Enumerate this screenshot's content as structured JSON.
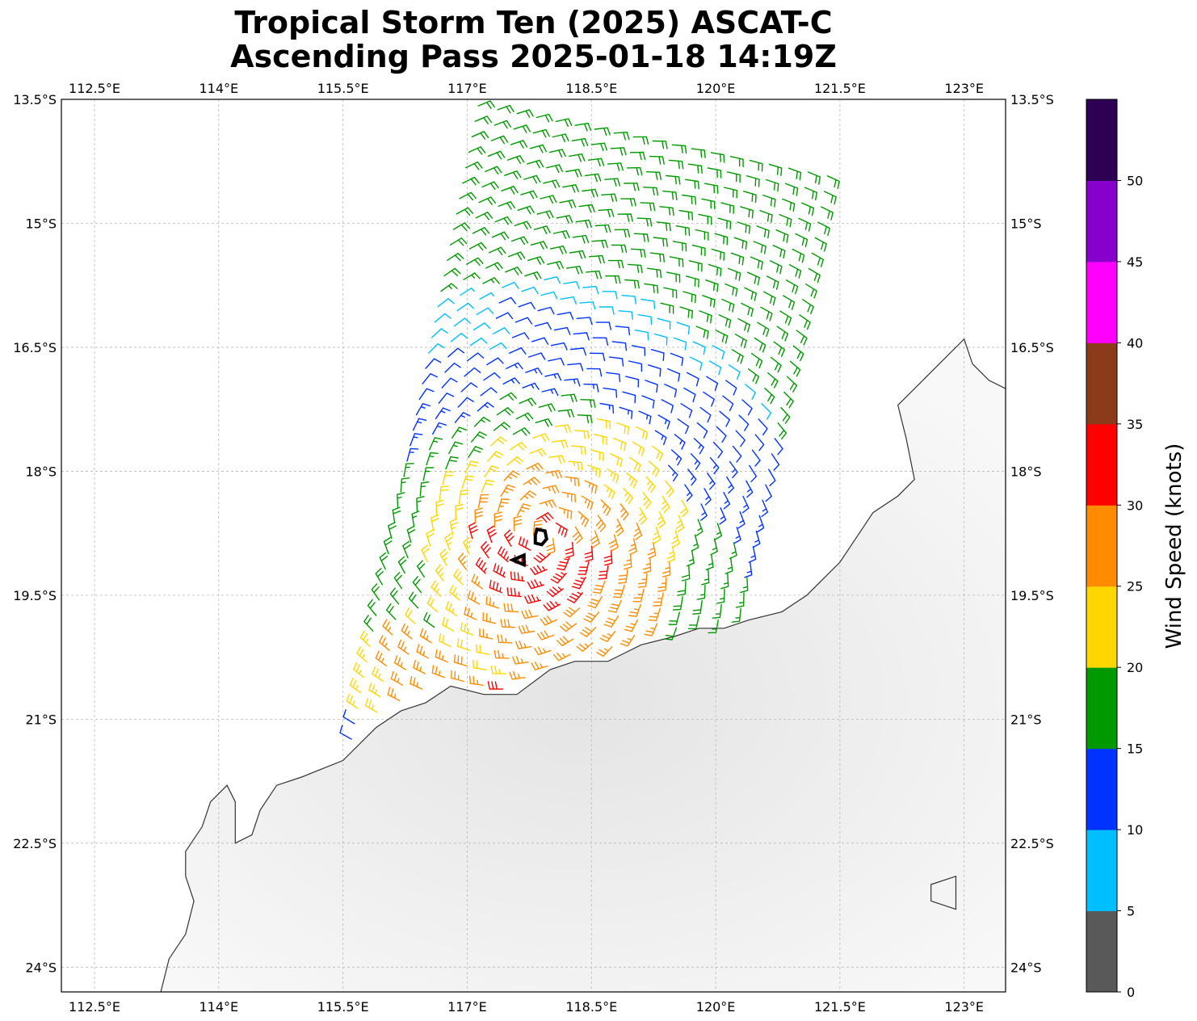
{
  "title": {
    "line1": "Tropical Storm Ten (2025) ASCAT-C",
    "line2": "Ascending Pass 2025-01-18 14:19Z"
  },
  "map": {
    "lon_range": [
      112.1,
      123.5
    ],
    "lat_range": [
      -24.3,
      -13.5
    ],
    "lon_ticks": [
      {
        "value": 112.5,
        "label": "112.5°E"
      },
      {
        "value": 114.0,
        "label": "114°E"
      },
      {
        "value": 115.5,
        "label": "115.5°E"
      },
      {
        "value": 117.0,
        "label": "117°E"
      },
      {
        "value": 118.5,
        "label": "118.5°E"
      },
      {
        "value": 120.0,
        "label": "120°E"
      },
      {
        "value": 121.5,
        "label": "121.5°E"
      },
      {
        "value": 123.0,
        "label": "123°E"
      }
    ],
    "lat_ticks": [
      {
        "value": -13.5,
        "label": "13.5°S"
      },
      {
        "value": -15.0,
        "label": "15°S"
      },
      {
        "value": -16.5,
        "label": "16.5°S"
      },
      {
        "value": -18.0,
        "label": "18°S"
      },
      {
        "value": -19.5,
        "label": "19.5°S"
      },
      {
        "value": -21.0,
        "label": "21°S"
      },
      {
        "value": -22.5,
        "label": "22.5°S"
      },
      {
        "value": -24.0,
        "label": "24°S"
      }
    ],
    "gridlines": true,
    "storm_center": {
      "lon": 117.9,
      "lat": -18.8
    },
    "coast": [
      [
        113.3,
        -24.3
      ],
      [
        113.4,
        -23.9
      ],
      [
        113.6,
        -23.6
      ],
      [
        113.7,
        -23.2
      ],
      [
        113.6,
        -22.9
      ],
      [
        113.6,
        -22.6
      ],
      [
        113.8,
        -22.3
      ],
      [
        113.9,
        -22.0
      ],
      [
        114.1,
        -21.8
      ],
      [
        114.2,
        -22.0
      ],
      [
        114.2,
        -22.3
      ],
      [
        114.2,
        -22.5
      ],
      [
        114.4,
        -22.4
      ],
      [
        114.5,
        -22.1
      ],
      [
        114.7,
        -21.8
      ],
      [
        115.0,
        -21.7
      ],
      [
        115.5,
        -21.5
      ],
      [
        115.9,
        -21.1
      ],
      [
        116.2,
        -20.9
      ],
      [
        116.5,
        -20.8
      ],
      [
        116.8,
        -20.6
      ],
      [
        117.2,
        -20.7
      ],
      [
        117.6,
        -20.7
      ],
      [
        118.0,
        -20.4
      ],
      [
        118.3,
        -20.3
      ],
      [
        118.7,
        -20.3
      ],
      [
        119.1,
        -20.1
      ],
      [
        119.5,
        -20.0
      ],
      [
        119.8,
        -19.9
      ],
      [
        120.1,
        -19.9
      ],
      [
        120.4,
        -19.8
      ],
      [
        120.8,
        -19.7
      ],
      [
        121.1,
        -19.5
      ],
      [
        121.5,
        -19.1
      ],
      [
        121.7,
        -18.8
      ],
      [
        121.9,
        -18.5
      ],
      [
        122.2,
        -18.3
      ],
      [
        122.4,
        -18.1
      ],
      [
        122.3,
        -17.6
      ],
      [
        122.2,
        -17.2
      ],
      [
        122.5,
        -16.9
      ],
      [
        122.8,
        -16.6
      ],
      [
        123.0,
        -16.4
      ],
      [
        123.1,
        -16.7
      ],
      [
        123.3,
        -16.9
      ],
      [
        123.5,
        -17.0
      ]
    ],
    "island": [
      [
        122.6,
        -23.0
      ],
      [
        122.9,
        -22.9
      ],
      [
        122.9,
        -23.3
      ],
      [
        122.6,
        -23.2
      ],
      [
        122.6,
        -23.0
      ]
    ]
  },
  "colorbar": {
    "label": "Wind Speed (knots)",
    "levels": [
      0,
      5,
      10,
      15,
      20,
      25,
      30,
      35,
      40,
      45,
      50
    ],
    "colors": [
      "#595959",
      "#00bfff",
      "#0033ff",
      "#009900",
      "#ffd700",
      "#ff8c00",
      "#ff0000",
      "#8b3a1a",
      "#ff00ff",
      "#8800cc",
      "#2e0054"
    ]
  }
}
